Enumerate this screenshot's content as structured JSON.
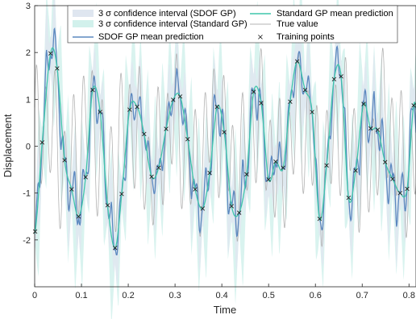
{
  "chart_data": {
    "type": "line",
    "xlabel": "Time",
    "ylabel": "Displacement",
    "xlim": [
      0,
      0.8
    ],
    "ylim": [
      -3,
      3
    ],
    "xticks": [
      "0",
      "0.1",
      "0.2",
      "0.3",
      "0.4",
      "0.5",
      "0.6",
      "0.7",
      "0.8"
    ],
    "yticks": [
      "-2",
      "-1",
      "0",
      "1",
      "2",
      "3"
    ],
    "grid": false,
    "legend_position": "top",
    "legend": {
      "ci_sdof": "3 σ confidence interval (SDOF GP)",
      "ci_standard": "3 σ confidence interval (Standard GP)",
      "sdof_mean": "SDOF GP mean prediction",
      "standard_mean": "Standard GP mean prediction",
      "true_value": "True value",
      "training": "Training points"
    },
    "colors": {
      "ci_sdof": "#dfe6f0",
      "ci_standard": "#d2f1ec",
      "sdof_mean": "#5b88bf",
      "standard_mean": "#3fc6ab",
      "true_value": "#b3b3b3",
      "training": "#222222"
    },
    "training_points": [
      [
        0.001,
        -1.82
      ],
      [
        0.016,
        0.08
      ],
      [
        0.034,
        1.98
      ],
      [
        0.048,
        1.66
      ],
      [
        0.064,
        -0.3
      ],
      [
        0.079,
        -0.92
      ],
      [
        0.094,
        -1.5
      ],
      [
        0.109,
        -0.66
      ],
      [
        0.124,
        1.2
      ],
      [
        0.14,
        0.73
      ],
      [
        0.156,
        -1.26
      ],
      [
        0.172,
        -2.17
      ],
      [
        0.186,
        -1.02
      ],
      [
        0.203,
        0.78
      ],
      [
        0.219,
        0.84
      ],
      [
        0.234,
        0.26
      ],
      [
        0.25,
        -0.65
      ],
      [
        0.265,
        -0.46
      ],
      [
        0.281,
        0.37
      ],
      [
        0.296,
        0.99
      ],
      [
        0.311,
        1.06
      ],
      [
        0.327,
        0.15
      ],
      [
        0.343,
        -0.92
      ],
      [
        0.359,
        -1.33
      ],
      [
        0.374,
        -0.57
      ],
      [
        0.39,
        0.84
      ],
      [
        0.405,
        0.3
      ],
      [
        0.421,
        -1.28
      ],
      [
        0.437,
        -1.42
      ],
      [
        0.453,
        -0.6
      ],
      [
        0.468,
        1.16
      ],
      [
        0.484,
        0.92
      ],
      [
        0.5,
        -0.71
      ],
      [
        0.515,
        -0.33
      ],
      [
        0.531,
        -0.46
      ],
      [
        0.546,
        0.95
      ],
      [
        0.561,
        1.81
      ],
      [
        0.578,
        1.2
      ],
      [
        0.593,
        0.73
      ],
      [
        0.609,
        -1.55
      ],
      [
        0.624,
        -0.41
      ],
      [
        0.64,
        1.43
      ],
      [
        0.655,
        1.49
      ],
      [
        0.671,
        -1.1
      ],
      [
        0.686,
        -0.52
      ],
      [
        0.703,
        0.9
      ],
      [
        0.718,
        0.38
      ],
      [
        0.733,
        0.35
      ],
      [
        0.749,
        -0.34
      ],
      [
        0.765,
        -0.7
      ],
      [
        0.781,
        -1.0
      ],
      [
        0.796,
        -0.91
      ],
      [
        0.81,
        0.87
      ]
    ]
  }
}
